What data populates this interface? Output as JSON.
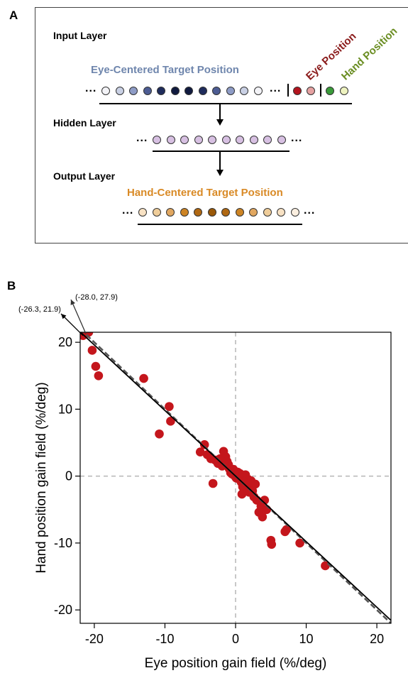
{
  "panel_a": {
    "label": "A",
    "input_layer": "Input Layer",
    "hidden_layer": "Hidden Layer",
    "output_layer": "Output Layer",
    "eye_centered": "Eye-Centered Target Position",
    "hand_centered": "Hand-Centered Target Position",
    "eye_position": "Eye Position",
    "hand_position": "Hand Position",
    "ellipsis": "...",
    "colors": {
      "eye_centered_text": "#6f86ad",
      "hand_centered_text": "#d98a26",
      "eye_position_text": "#8b1c1c",
      "hand_position_text": "#6b8e23",
      "input_nodes": [
        "#f3f3f7",
        "#c9d0e4",
        "#8e9cc6",
        "#4d5c93",
        "#1f2c5c",
        "#101a3f",
        "#101a3f",
        "#1f2c5c",
        "#4d5c93",
        "#8e9cc6",
        "#c9d0e4",
        "#f3f3f7"
      ],
      "eye_nodes": [
        "#b3141e",
        "#e5a1a1"
      ],
      "hand_nodes": [
        "#3a9b3a",
        "#eef3c0"
      ],
      "hidden_node": "#d7c0e2",
      "output_nodes": [
        "#f8e2c4",
        "#efcd9a",
        "#e1a760",
        "#cd8424",
        "#b06812",
        "#9a5808",
        "#b06812",
        "#cd8424",
        "#e1a760",
        "#efcd9a",
        "#f8e2c4",
        "#fbefe0"
      ]
    }
  },
  "panel_b": {
    "label": "B",
    "annotation_1": "(-28.0, 27.9)",
    "annotation_2": "(-26.3, 21.9)"
  },
  "chart_data": {
    "type": "scatter",
    "xlabel": "Eye position gain field (%/deg)",
    "ylabel": "Hand position gain field (%/deg)",
    "xlim": [
      -22,
      22
    ],
    "ylim": [
      -22,
      21.5
    ],
    "xticks": [
      -20,
      -10,
      0,
      10,
      20
    ],
    "yticks": [
      20,
      10,
      0,
      -10,
      -20
    ],
    "xtick_labels": [
      "-20",
      "-10",
      "0",
      "10",
      "20"
    ],
    "ytick_labels": [
      "20",
      "10",
      "0",
      "-10",
      "-20"
    ],
    "marker_color": "#c4161c",
    "reference_lines": {
      "x": 0,
      "y": 0,
      "style": "dashed",
      "color": "#bbbbbb"
    },
    "fit_line_solid": {
      "slope": -0.98,
      "intercept": 0.0,
      "color": "#000000"
    },
    "unity_line_dashed": {
      "slope": -1.0,
      "intercept": 0.0,
      "color": "#555555"
    },
    "points": [
      [
        -21.6,
        21.0
      ],
      [
        -21.2,
        21.3
      ],
      [
        -20.8,
        21.5
      ],
      [
        -20.3,
        18.8
      ],
      [
        -19.8,
        16.4
      ],
      [
        -19.4,
        15.0
      ],
      [
        -13.0,
        14.6
      ],
      [
        -9.4,
        10.4
      ],
      [
        -9.2,
        8.2
      ],
      [
        -10.8,
        6.3
      ],
      [
        -5.0,
        3.6
      ],
      [
        -4.4,
        4.7
      ],
      [
        -4.0,
        3.2
      ],
      [
        -3.5,
        2.6
      ],
      [
        -3.2,
        -1.1
      ],
      [
        -2.9,
        2.4
      ],
      [
        -2.5,
        1.9
      ],
      [
        -2.2,
        2.6
      ],
      [
        -1.9,
        1.5
      ],
      [
        -1.7,
        3.7
      ],
      [
        -1.4,
        2.9
      ],
      [
        -1.2,
        2.2
      ],
      [
        -1.0,
        1.7
      ],
      [
        -0.9,
        1.1
      ],
      [
        -0.7,
        0.5
      ],
      [
        -0.5,
        0.3
      ],
      [
        -0.3,
        1.0
      ],
      [
        -0.1,
        0.0
      ],
      [
        0.1,
        -0.3
      ],
      [
        0.3,
        0.6
      ],
      [
        0.4,
        -0.4
      ],
      [
        0.6,
        0.4
      ],
      [
        0.8,
        -0.9
      ],
      [
        1.0,
        -1.6
      ],
      [
        1.2,
        -0.3
      ],
      [
        1.4,
        0.2
      ],
      [
        1.6,
        -1.0
      ],
      [
        1.8,
        -0.5
      ],
      [
        2.0,
        -1.6
      ],
      [
        2.2,
        -0.7
      ],
      [
        2.4,
        -2.2
      ],
      [
        2.6,
        -3.1
      ],
      [
        2.8,
        -1.2
      ],
      [
        3.0,
        -3.6
      ],
      [
        3.3,
        -5.4
      ],
      [
        3.6,
        -4.5
      ],
      [
        3.8,
        -6.1
      ],
      [
        4.1,
        -3.6
      ],
      [
        4.4,
        -5.0
      ],
      [
        0.9,
        -2.7
      ],
      [
        5.0,
        -9.6
      ],
      [
        5.1,
        -10.2
      ],
      [
        7.0,
        -8.3
      ],
      [
        7.2,
        -8.0
      ],
      [
        9.1,
        -10.0
      ],
      [
        12.7,
        -13.4
      ],
      [
        0.5,
        -0.1
      ],
      [
        1.1,
        -0.8
      ],
      [
        -0.2,
        0.4
      ],
      [
        1.9,
        -2.4
      ]
    ]
  }
}
